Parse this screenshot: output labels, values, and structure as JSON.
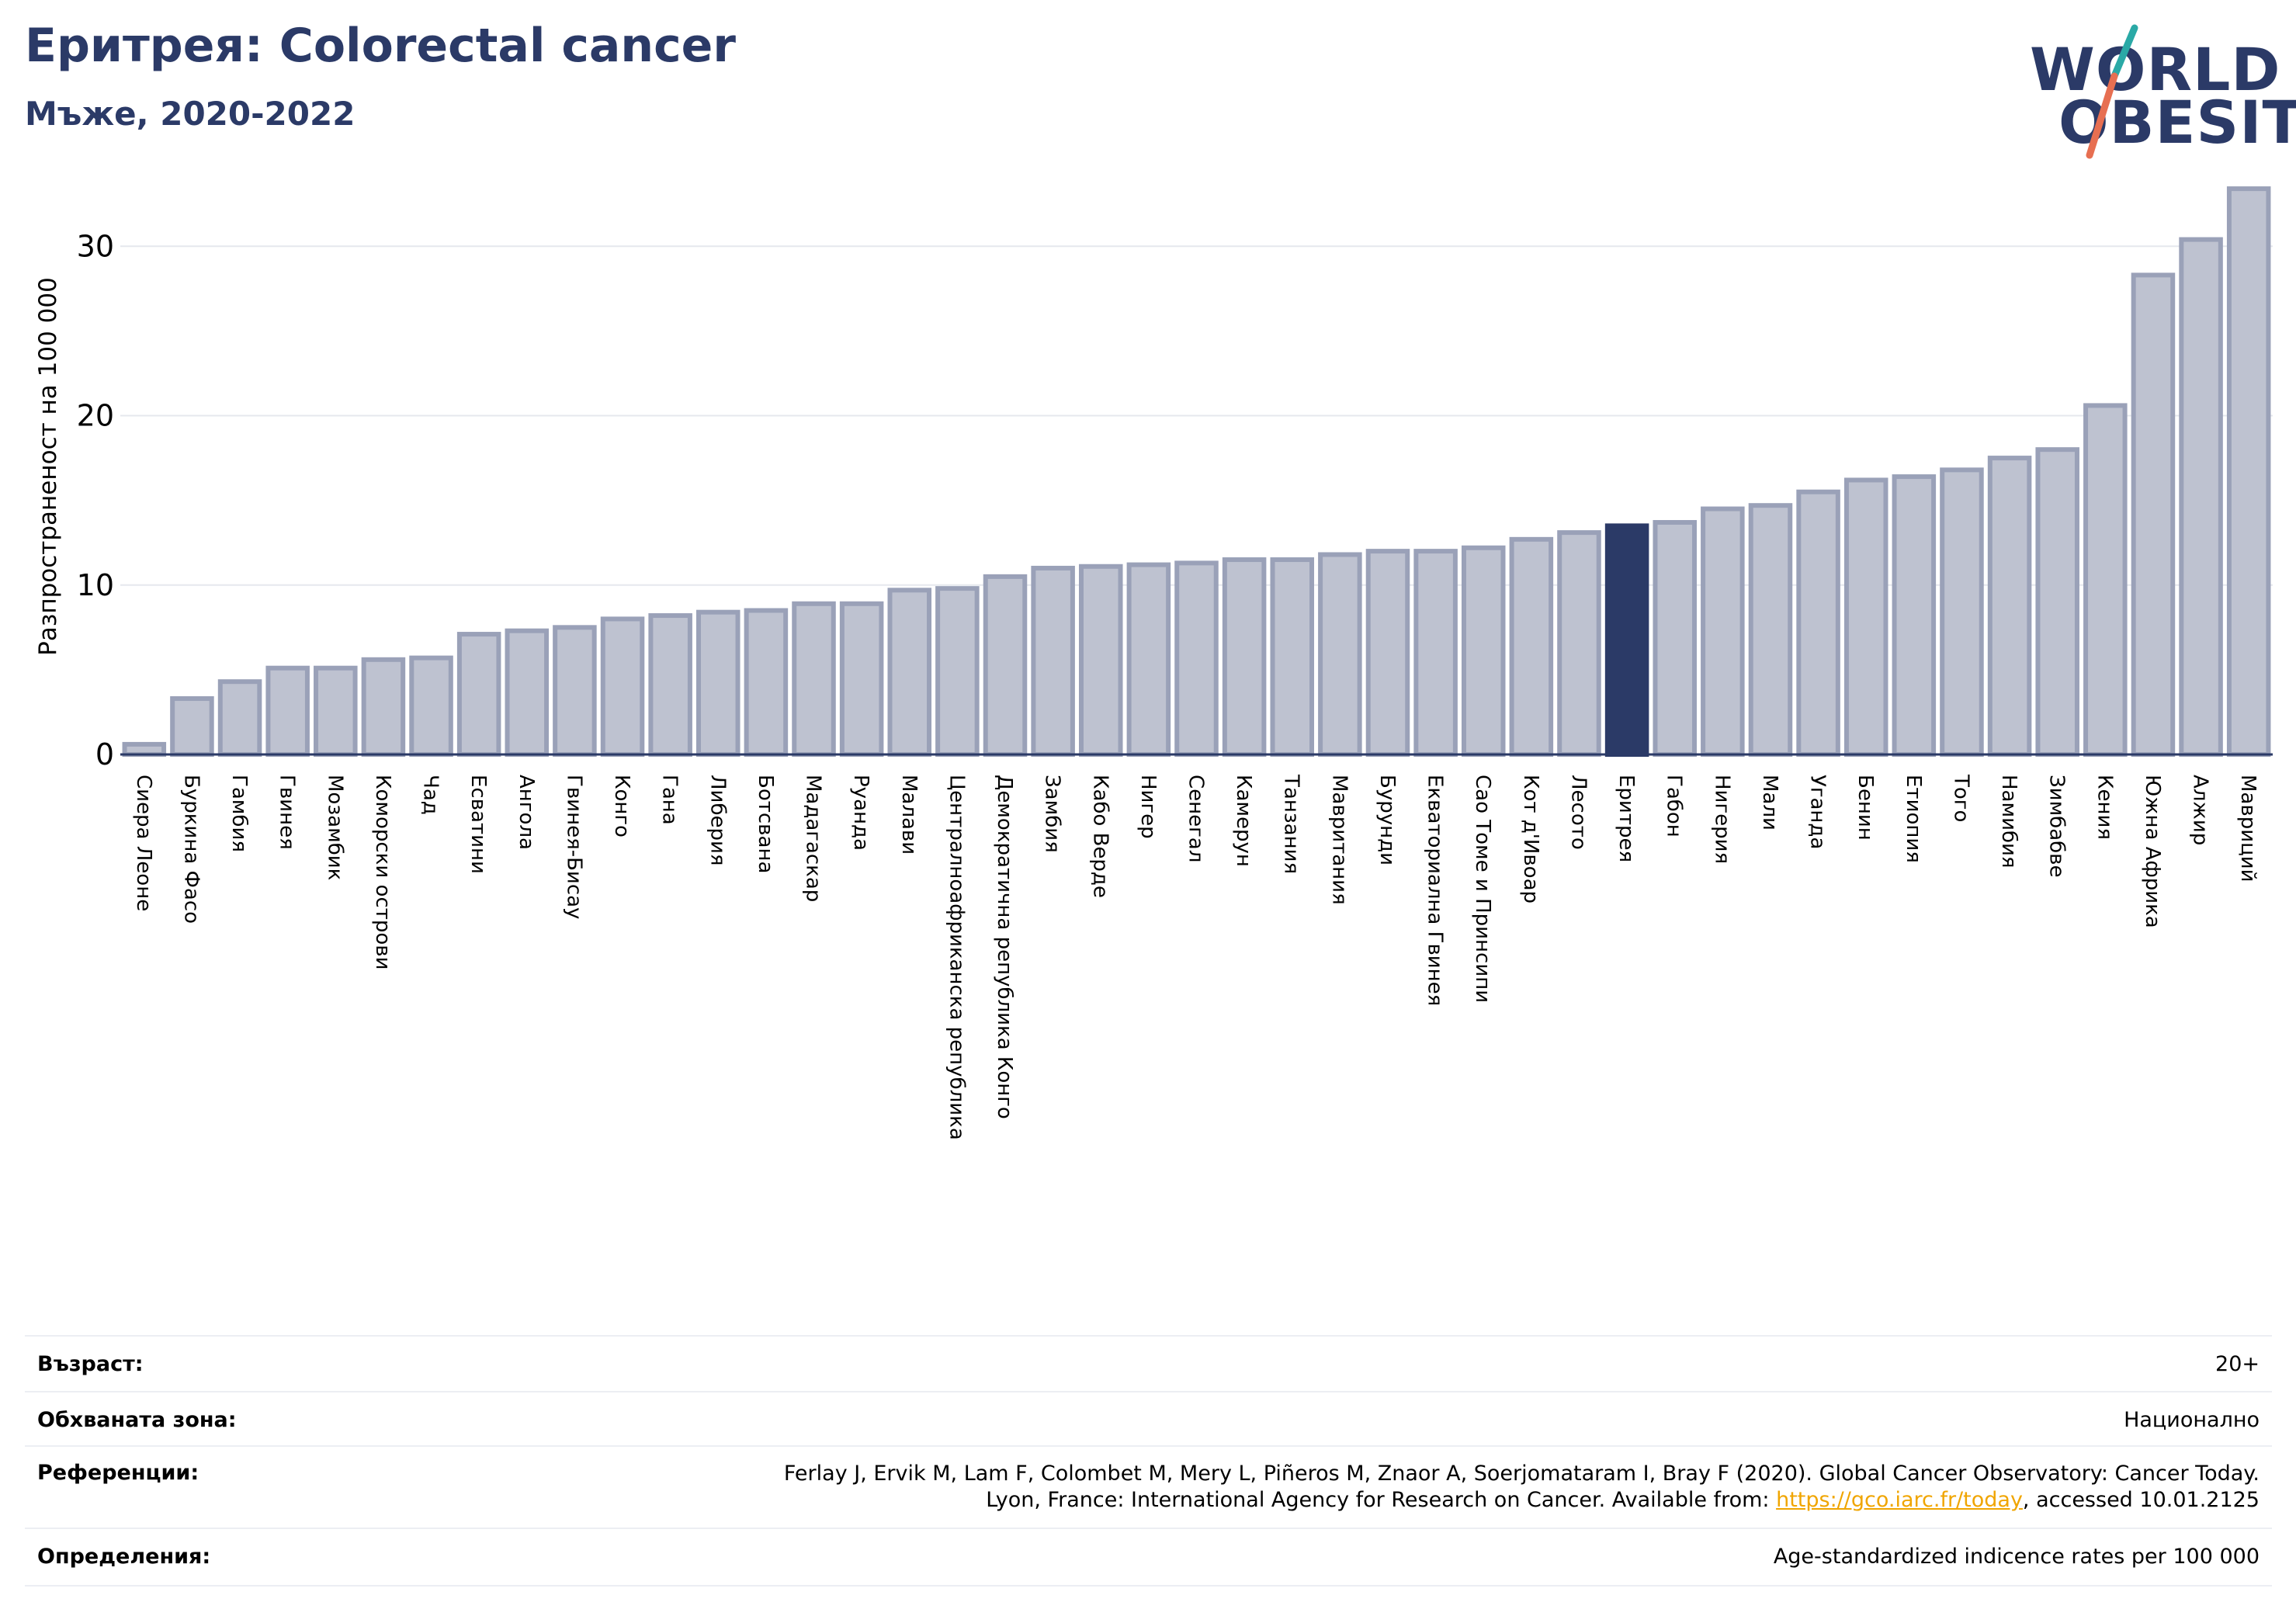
{
  "title": "Еритрея: Colorectal cancer",
  "subtitle": "Мъже, 2020-2022",
  "logo": {
    "line1": "WORLD",
    "line2": "OBESITY"
  },
  "colors": {
    "bar": "#bec2d0",
    "bar_edge": "#9aa1b8",
    "highlight": "#2b3a67",
    "link": "#f0a500",
    "title": "#2b3a67"
  },
  "chart_data": {
    "type": "bar",
    "ylabel": "Разпространеност  на 100 000",
    "ylim": [
      0,
      34
    ],
    "yticks": [
      0,
      10,
      20,
      30
    ],
    "grid": true,
    "highlight": "Еритрея",
    "categories": [
      "Сиера Леоне",
      "Буркина Фасо",
      "Гамбия",
      "Гвинея",
      "Мозамбик",
      "Коморски острови",
      "Чад",
      "Есватини",
      "Ангола",
      "Гвинея-Бисау",
      "Конго",
      "Гана",
      "Либерия",
      "Ботсвана",
      "Мадагаскар",
      "Руанда",
      "Малави",
      "Централноафриканска република",
      "Демократична република Конго",
      "Замбия",
      "Кабо Верде",
      "Нигер",
      "Сенегал",
      "Камерун",
      "Танзания",
      "Мавритания",
      "Бурунди",
      "Екваториална Гвинея",
      "Сао Томе и Принсипи",
      "Кот д'Ивоар",
      "Лесото",
      "Еритрея",
      "Габон",
      "Нигерия",
      "Мали",
      "Уганда",
      "Бенин",
      "Етиопия",
      "Того",
      "Намибия",
      "Зимбабве",
      "Кения",
      "Южна Африка",
      "Алжир",
      "Мавриций"
    ],
    "values": [
      0.6,
      3.3,
      4.3,
      5.1,
      5.1,
      5.6,
      5.7,
      7.1,
      7.3,
      7.5,
      8.0,
      8.2,
      8.4,
      8.5,
      8.9,
      8.9,
      9.7,
      9.8,
      10.5,
      11.0,
      11.1,
      11.2,
      11.3,
      11.5,
      11.5,
      11.8,
      12.0,
      12.0,
      12.2,
      12.7,
      13.1,
      13.5,
      13.7,
      14.5,
      14.7,
      15.5,
      16.2,
      16.4,
      16.8,
      17.5,
      18.0,
      20.6,
      28.3,
      30.4,
      33.4
    ]
  },
  "info": {
    "age_label": "Възраст:",
    "age_value": "20+",
    "area_label": "Обхваната зона:",
    "area_value": "Национално",
    "ref_label": "Референции:",
    "ref_line1": "Ferlay J, Ervik M, Lam F, Colombet M, Mery L, Piñeros M, Znaor A, Soerjomataram I, Bray F (2020). Global Cancer Observatory: Cancer Today.",
    "ref_line2_prefix": "Lyon, France: International Agency for Research on Cancer. Available from: ",
    "ref_link": "https://gco.iarc.fr/today",
    "ref_line2_suffix": ", accessed 10.01.2125",
    "def_label": "Определения:",
    "def_value": "Age-standardized indicence rates per 100 000"
  }
}
